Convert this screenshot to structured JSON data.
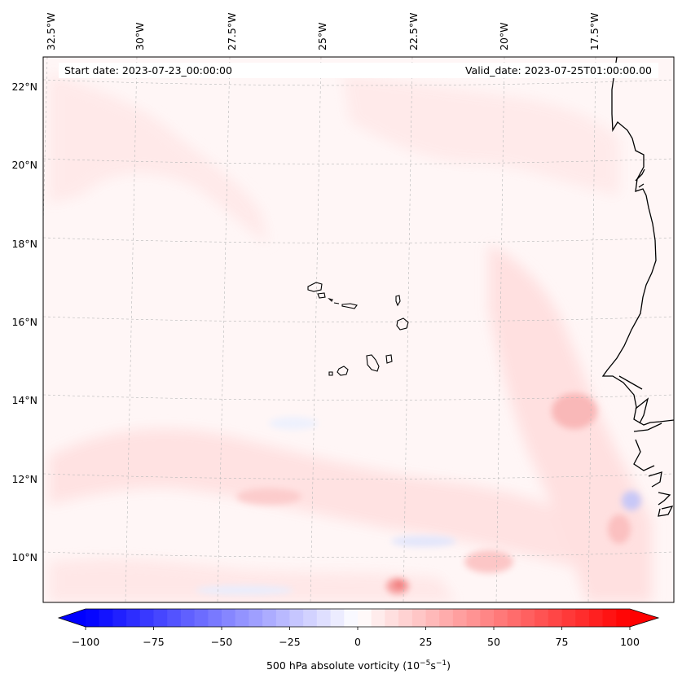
{
  "map": {
    "projection": "Lambert conformal (cartopy)",
    "extent": {
      "lon_min": -32.5,
      "lon_max": -14.5,
      "lat_min": 9,
      "lat_max": 22.8
    },
    "start_date_label": "Start date: 2023-07-23_00:00:00",
    "valid_date_label": "Valid_date: 2023-07-25T01:00:00.00",
    "lon_ticks": [
      {
        "value": -32.5,
        "label": "32.5°W"
      },
      {
        "value": -30,
        "label": "30°W"
      },
      {
        "value": -27.5,
        "label": "27.5°W"
      },
      {
        "value": -25,
        "label": "25°W"
      },
      {
        "value": -22.5,
        "label": "22.5°W"
      },
      {
        "value": -20,
        "label": "20°W"
      },
      {
        "value": -17.5,
        "label": "17.5°W"
      }
    ],
    "lat_ticks": [
      {
        "value": 22,
        "label": "22°N"
      },
      {
        "value": 20,
        "label": "20°N"
      },
      {
        "value": 18,
        "label": "18°N"
      },
      {
        "value": 16,
        "label": "16°N"
      },
      {
        "value": 14,
        "label": "14°N"
      },
      {
        "value": 12,
        "label": "12°N"
      },
      {
        "value": 10,
        "label": "10°N"
      }
    ],
    "features": [
      {
        "name": "West African coast (Mauritania / Senegal / Gambia / Guinea-Bissau)"
      },
      {
        "name": "Cape Verde Islands"
      }
    ]
  },
  "field": {
    "variable": "500 hPa absolute vorticity",
    "units": "10^-5 s^-1",
    "notable_features": [
      {
        "description": "weak positive band along southern edge",
        "approx_value": 15
      },
      {
        "description": "maximum south of Cape Verde",
        "approx_value": 40
      },
      {
        "description": "positive vorticity near Senegal coast",
        "approx_value": 30
      },
      {
        "description": "weak negative patch near Guinea-Bissau",
        "approx_value": -20
      }
    ]
  },
  "colorbar": {
    "label_prefix": "500 hPa absolute vorticity (10",
    "label_exp1": "−5",
    "label_mid": "s",
    "label_exp2": "−1",
    "label_suffix": ")",
    "min": -100,
    "max": 100,
    "n_levels": 40,
    "cmap": "bwr",
    "ticks": [
      {
        "value": -100,
        "label": "−100"
      },
      {
        "value": -75,
        "label": "−75"
      },
      {
        "value": -50,
        "label": "−50"
      },
      {
        "value": -25,
        "label": "−25"
      },
      {
        "value": 0,
        "label": "0"
      },
      {
        "value": 25,
        "label": "25"
      },
      {
        "value": 50,
        "label": "50"
      },
      {
        "value": 75,
        "label": "75"
      },
      {
        "value": 100,
        "label": "100"
      }
    ]
  }
}
